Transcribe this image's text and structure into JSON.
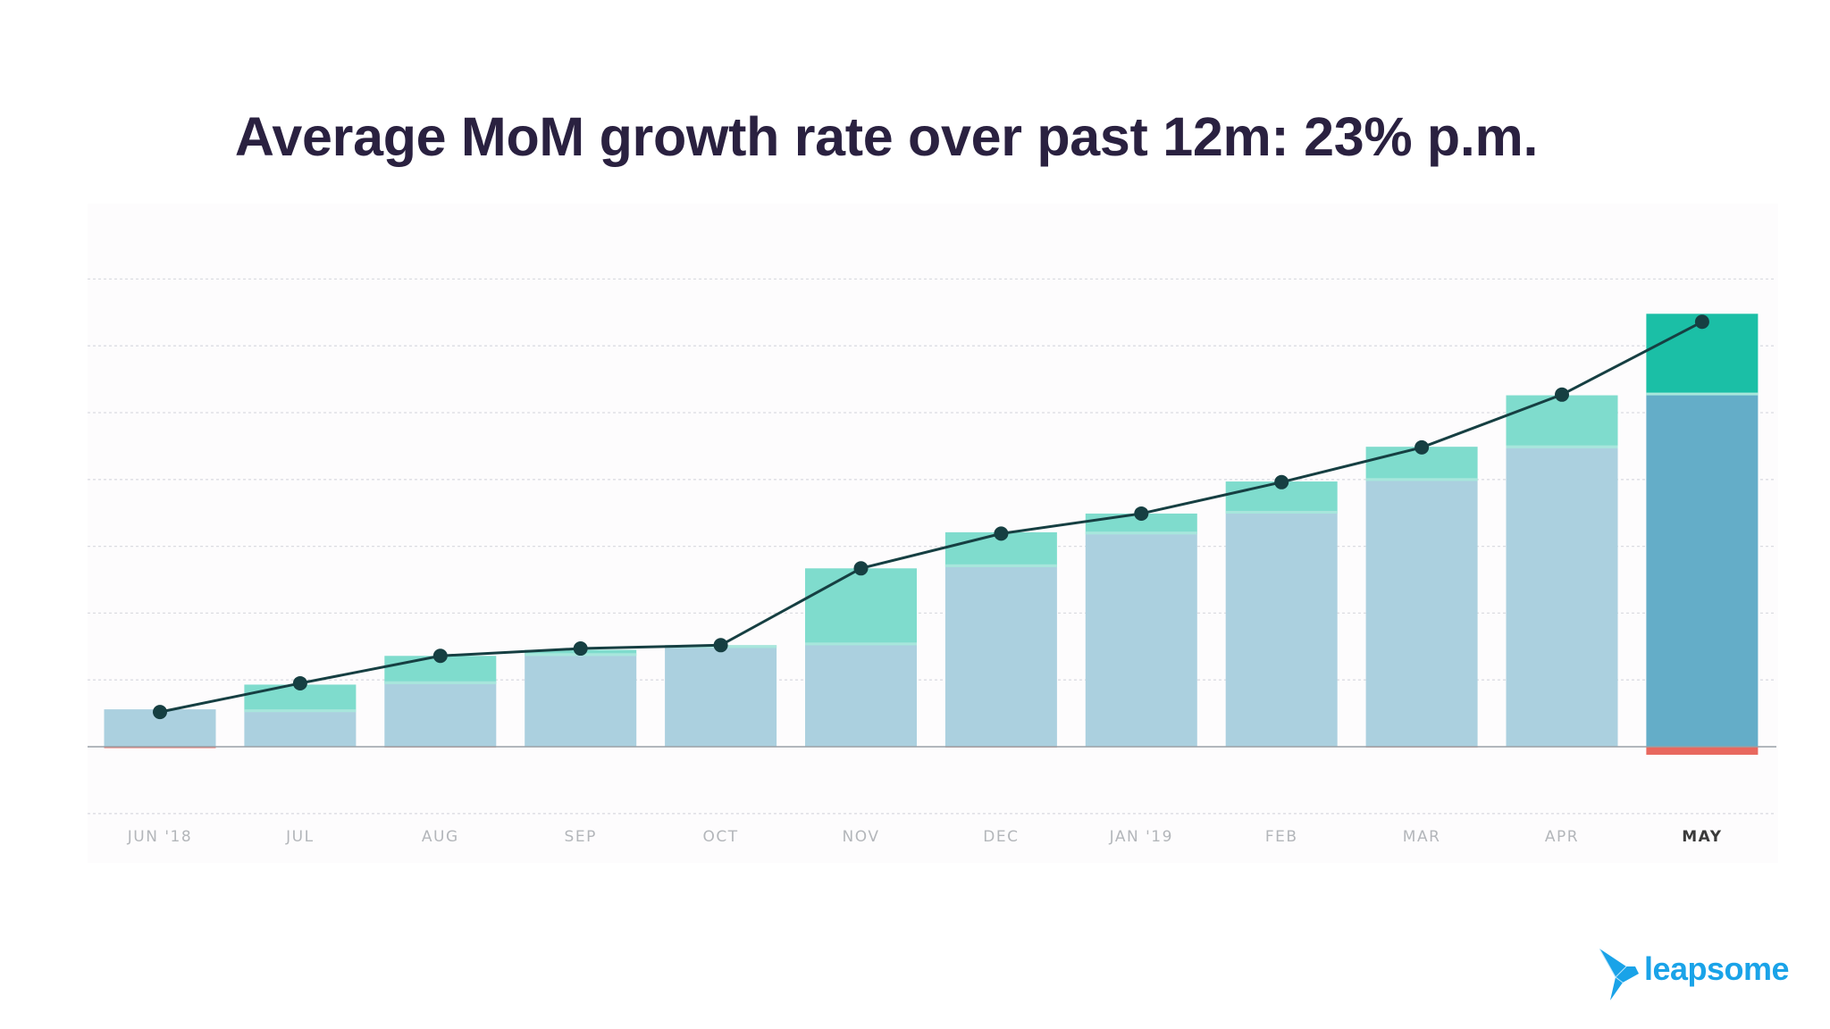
{
  "chart_data": {
    "type": "bar",
    "stacked": true,
    "title": "Average MoM growth rate over past 12m: 23% p.m.",
    "xlabel": "",
    "ylabel": "",
    "y_tick_labels_shown": false,
    "ylim": [
      -1,
      7
    ],
    "grid": true,
    "legend": "none",
    "categories": [
      "JUN '18",
      "JUL",
      "AUG",
      "SEP",
      "OCT",
      "NOV",
      "DEC",
      "JAN '19",
      "FEB",
      "MAR",
      "APR",
      "MAY"
    ],
    "highlighted_category": "MAY",
    "series": [
      {
        "kind": "bar",
        "values": [
          0.56,
          0.52,
          0.94,
          1.36,
          1.48,
          1.52,
          2.69,
          3.18,
          3.49,
          3.98,
          4.47,
          5.26
        ]
      },
      {
        "kind": "bar",
        "values": [
          0.0,
          0.41,
          0.42,
          0.09,
          0.04,
          1.15,
          0.52,
          0.31,
          0.48,
          0.51,
          0.79,
          1.22
        ]
      },
      {
        "kind": "bar",
        "values": [
          -0.02,
          0,
          -0.01,
          0,
          0,
          0,
          -0.01,
          0,
          0,
          -0.01,
          0,
          -0.12
        ]
      },
      {
        "kind": "line",
        "values": [
          0.52,
          0.95,
          1.36,
          1.47,
          1.52,
          2.67,
          3.19,
          3.49,
          3.96,
          4.48,
          5.27,
          6.36
        ]
      }
    ],
    "colors": {
      "base": "#abd0df",
      "new": "#7fdccd",
      "base_highlight": "#64adc8",
      "new_highlight": "#1bbfa6",
      "negative": "#e8685f",
      "line": "#163f42",
      "title": "#2a2140"
    }
  },
  "brand": {
    "logo_text": "leapsome",
    "color": "#1aa3e8"
  }
}
